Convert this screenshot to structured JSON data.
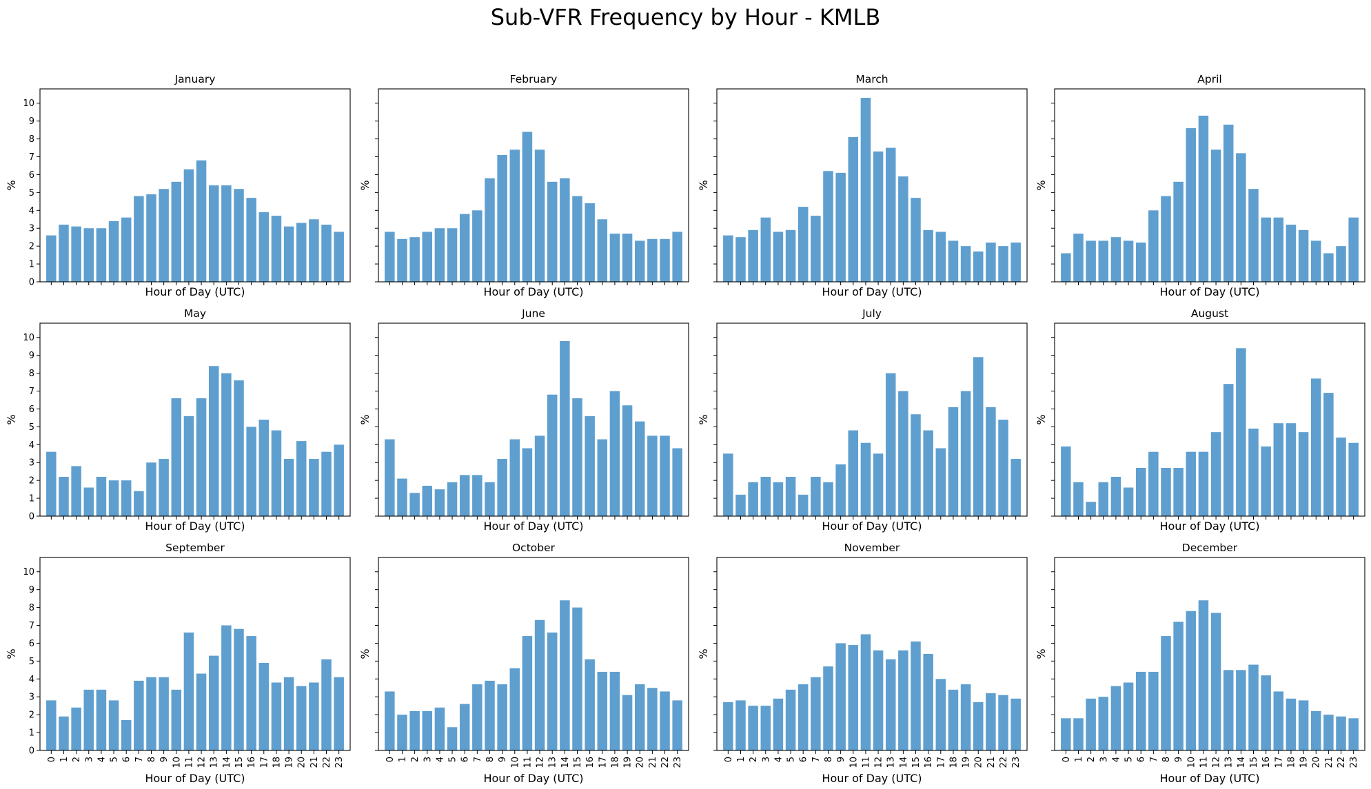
{
  "figure": {
    "title": "Sub-VFR Frequency by Hour - KMLB"
  },
  "chart_data": [
    {
      "type": "bar",
      "title": "January",
      "xlabel": "Hour of Day (UTC)",
      "ylabel": "%",
      "ylim": [
        0,
        10.8
      ],
      "yticks": [
        0,
        1,
        2,
        3,
        4,
        5,
        6,
        7,
        8,
        9,
        10
      ],
      "categories": [
        "0",
        "1",
        "2",
        "3",
        "4",
        "5",
        "6",
        "7",
        "8",
        "9",
        "10",
        "11",
        "12",
        "13",
        "14",
        "15",
        "16",
        "17",
        "18",
        "19",
        "20",
        "21",
        "22",
        "23"
      ],
      "values": [
        2.6,
        3.2,
        3.1,
        3.0,
        3.0,
        3.4,
        3.6,
        4.8,
        4.9,
        5.2,
        5.6,
        6.3,
        6.8,
        5.4,
        5.4,
        5.2,
        4.7,
        3.9,
        3.7,
        3.1,
        3.3,
        3.5,
        3.2,
        2.8
      ]
    },
    {
      "type": "bar",
      "title": "February",
      "xlabel": "Hour of Day (UTC)",
      "ylabel": "%",
      "ylim": [
        0,
        10.8
      ],
      "yticks": [
        0,
        1,
        2,
        3,
        4,
        5,
        6,
        7,
        8,
        9,
        10
      ],
      "categories": [
        "0",
        "1",
        "2",
        "3",
        "4",
        "5",
        "6",
        "7",
        "8",
        "9",
        "10",
        "11",
        "12",
        "13",
        "14",
        "15",
        "16",
        "17",
        "18",
        "19",
        "20",
        "21",
        "22",
        "23"
      ],
      "values": [
        2.8,
        2.4,
        2.5,
        2.8,
        3.0,
        3.0,
        3.8,
        4.0,
        5.8,
        7.1,
        7.4,
        8.4,
        7.4,
        5.6,
        5.8,
        4.8,
        4.4,
        3.5,
        2.7,
        2.7,
        2.3,
        2.4,
        2.4,
        2.8
      ]
    },
    {
      "type": "bar",
      "title": "March",
      "xlabel": "Hour of Day (UTC)",
      "ylabel": "%",
      "ylim": [
        0,
        10.8
      ],
      "yticks": [
        0,
        1,
        2,
        3,
        4,
        5,
        6,
        7,
        8,
        9,
        10
      ],
      "categories": [
        "0",
        "1",
        "2",
        "3",
        "4",
        "5",
        "6",
        "7",
        "8",
        "9",
        "10",
        "11",
        "12",
        "13",
        "14",
        "15",
        "16",
        "17",
        "18",
        "19",
        "20",
        "21",
        "22",
        "23"
      ],
      "values": [
        2.6,
        2.5,
        2.9,
        3.6,
        2.8,
        2.9,
        4.2,
        3.7,
        6.2,
        6.1,
        8.1,
        10.3,
        7.3,
        7.5,
        5.9,
        4.7,
        2.9,
        2.8,
        2.3,
        2.0,
        1.7,
        2.2,
        2.0,
        2.2
      ]
    },
    {
      "type": "bar",
      "title": "April",
      "xlabel": "Hour of Day (UTC)",
      "ylabel": "%",
      "ylim": [
        0,
        10.8
      ],
      "yticks": [
        0,
        1,
        2,
        3,
        4,
        5,
        6,
        7,
        8,
        9,
        10
      ],
      "categories": [
        "0",
        "1",
        "2",
        "3",
        "4",
        "5",
        "6",
        "7",
        "8",
        "9",
        "10",
        "11",
        "12",
        "13",
        "14",
        "15",
        "16",
        "17",
        "18",
        "19",
        "20",
        "21",
        "22",
        "23"
      ],
      "values": [
        1.6,
        2.7,
        2.3,
        2.3,
        2.5,
        2.3,
        2.2,
        4.0,
        4.8,
        5.6,
        8.6,
        9.3,
        7.4,
        8.8,
        7.2,
        5.2,
        3.6,
        3.6,
        3.2,
        2.9,
        2.3,
        1.6,
        2.0,
        3.6
      ]
    },
    {
      "type": "bar",
      "title": "May",
      "xlabel": "Hour of Day (UTC)",
      "ylabel": "%",
      "ylim": [
        0,
        10.8
      ],
      "yticks": [
        0,
        1,
        2,
        3,
        4,
        5,
        6,
        7,
        8,
        9,
        10
      ],
      "categories": [
        "0",
        "1",
        "2",
        "3",
        "4",
        "5",
        "6",
        "7",
        "8",
        "9",
        "10",
        "11",
        "12",
        "13",
        "14",
        "15",
        "16",
        "17",
        "18",
        "19",
        "20",
        "21",
        "22",
        "23"
      ],
      "values": [
        3.6,
        2.2,
        2.8,
        1.6,
        2.2,
        2.0,
        2.0,
        1.4,
        3.0,
        3.2,
        6.6,
        5.6,
        6.6,
        8.4,
        8.0,
        7.6,
        5.0,
        5.4,
        4.8,
        3.2,
        4.2,
        3.2,
        3.6,
        4.0
      ]
    },
    {
      "type": "bar",
      "title": "June",
      "xlabel": "Hour of Day (UTC)",
      "ylabel": "%",
      "ylim": [
        0,
        10.8
      ],
      "yticks": [
        0,
        1,
        2,
        3,
        4,
        5,
        6,
        7,
        8,
        9,
        10
      ],
      "categories": [
        "0",
        "1",
        "2",
        "3",
        "4",
        "5",
        "6",
        "7",
        "8",
        "9",
        "10",
        "11",
        "12",
        "13",
        "14",
        "15",
        "16",
        "17",
        "18",
        "19",
        "20",
        "21",
        "22",
        "23"
      ],
      "values": [
        4.3,
        2.1,
        1.3,
        1.7,
        1.5,
        1.9,
        2.3,
        2.3,
        1.9,
        3.2,
        4.3,
        3.8,
        4.5,
        6.8,
        9.8,
        6.6,
        5.6,
        4.3,
        7.0,
        6.2,
        5.3,
        4.5,
        4.5,
        3.8
      ]
    },
    {
      "type": "bar",
      "title": "July",
      "xlabel": "Hour of Day (UTC)",
      "ylabel": "%",
      "ylim": [
        0,
        10.8
      ],
      "yticks": [
        0,
        1,
        2,
        3,
        4,
        5,
        6,
        7,
        8,
        9,
        10
      ],
      "categories": [
        "0",
        "1",
        "2",
        "3",
        "4",
        "5",
        "6",
        "7",
        "8",
        "9",
        "10",
        "11",
        "12",
        "13",
        "14",
        "15",
        "16",
        "17",
        "18",
        "19",
        "20",
        "21",
        "22",
        "23"
      ],
      "values": [
        3.5,
        1.2,
        1.9,
        2.2,
        1.9,
        2.2,
        1.2,
        2.2,
        1.9,
        2.9,
        4.8,
        4.1,
        3.5,
        8.0,
        7.0,
        5.7,
        4.8,
        3.8,
        6.1,
        7.0,
        8.9,
        6.1,
        5.4,
        3.2
      ]
    },
    {
      "type": "bar",
      "title": "August",
      "xlabel": "Hour of Day (UTC)",
      "ylabel": "%",
      "ylim": [
        0,
        10.8
      ],
      "yticks": [
        0,
        1,
        2,
        3,
        4,
        5,
        6,
        7,
        8,
        9,
        10
      ],
      "categories": [
        "0",
        "1",
        "2",
        "3",
        "4",
        "5",
        "6",
        "7",
        "8",
        "9",
        "10",
        "11",
        "12",
        "13",
        "14",
        "15",
        "16",
        "17",
        "18",
        "19",
        "20",
        "21",
        "22",
        "23"
      ],
      "values": [
        3.9,
        1.9,
        0.8,
        1.9,
        2.2,
        1.6,
        2.7,
        3.6,
        2.7,
        2.7,
        3.6,
        3.6,
        4.7,
        7.4,
        9.4,
        4.9,
        3.9,
        5.2,
        5.2,
        4.7,
        7.7,
        6.9,
        4.4,
        4.1
      ]
    },
    {
      "type": "bar",
      "title": "September",
      "xlabel": "Hour of Day (UTC)",
      "ylabel": "%",
      "ylim": [
        0,
        10.8
      ],
      "yticks": [
        0,
        1,
        2,
        3,
        4,
        5,
        6,
        7,
        8,
        9,
        10
      ],
      "categories": [
        "0",
        "1",
        "2",
        "3",
        "4",
        "5",
        "6",
        "7",
        "8",
        "9",
        "10",
        "11",
        "12",
        "13",
        "14",
        "15",
        "16",
        "17",
        "18",
        "19",
        "20",
        "21",
        "22",
        "23"
      ],
      "values": [
        2.8,
        1.9,
        2.4,
        3.4,
        3.4,
        2.8,
        1.7,
        3.9,
        4.1,
        4.1,
        3.4,
        6.6,
        4.3,
        5.3,
        7.0,
        6.8,
        6.4,
        4.9,
        3.8,
        4.1,
        3.6,
        3.8,
        5.1,
        4.1
      ]
    },
    {
      "type": "bar",
      "title": "October",
      "xlabel": "Hour of Day (UTC)",
      "ylabel": "%",
      "ylim": [
        0,
        10.8
      ],
      "yticks": [
        0,
        1,
        2,
        3,
        4,
        5,
        6,
        7,
        8,
        9,
        10
      ],
      "categories": [
        "0",
        "1",
        "2",
        "3",
        "4",
        "5",
        "6",
        "7",
        "8",
        "9",
        "10",
        "11",
        "12",
        "13",
        "14",
        "15",
        "16",
        "17",
        "18",
        "19",
        "20",
        "21",
        "22",
        "23"
      ],
      "values": [
        3.3,
        2.0,
        2.2,
        2.2,
        2.4,
        1.3,
        2.6,
        3.7,
        3.9,
        3.7,
        4.6,
        6.4,
        7.3,
        6.6,
        8.4,
        8.0,
        5.1,
        4.4,
        4.4,
        3.1,
        3.7,
        3.5,
        3.3,
        2.8
      ]
    },
    {
      "type": "bar",
      "title": "November",
      "xlabel": "Hour of Day (UTC)",
      "ylabel": "%",
      "ylim": [
        0,
        10.8
      ],
      "yticks": [
        0,
        1,
        2,
        3,
        4,
        5,
        6,
        7,
        8,
        9,
        10
      ],
      "categories": [
        "0",
        "1",
        "2",
        "3",
        "4",
        "5",
        "6",
        "7",
        "8",
        "9",
        "10",
        "11",
        "12",
        "13",
        "14",
        "15",
        "16",
        "17",
        "18",
        "19",
        "20",
        "21",
        "22",
        "23"
      ],
      "values": [
        2.7,
        2.8,
        2.5,
        2.5,
        2.9,
        3.4,
        3.7,
        4.1,
        4.7,
        6.0,
        5.9,
        6.5,
        5.6,
        5.1,
        5.6,
        6.1,
        5.4,
        4.0,
        3.4,
        3.7,
        2.7,
        3.2,
        3.1,
        2.9
      ]
    },
    {
      "type": "bar",
      "title": "December",
      "xlabel": "Hour of Day (UTC)",
      "ylabel": "%",
      "ylim": [
        0,
        10.8
      ],
      "yticks": [
        0,
        1,
        2,
        3,
        4,
        5,
        6,
        7,
        8,
        9,
        10
      ],
      "categories": [
        "0",
        "1",
        "2",
        "3",
        "4",
        "5",
        "6",
        "7",
        "8",
        "9",
        "10",
        "11",
        "12",
        "13",
        "14",
        "15",
        "16",
        "17",
        "18",
        "19",
        "20",
        "21",
        "22",
        "23"
      ],
      "values": [
        1.8,
        1.8,
        2.9,
        3.0,
        3.6,
        3.8,
        4.4,
        4.4,
        6.4,
        7.2,
        7.8,
        8.4,
        7.7,
        4.5,
        4.5,
        4.8,
        4.2,
        3.3,
        2.9,
        2.8,
        2.2,
        2.0,
        1.9,
        1.8
      ]
    }
  ]
}
